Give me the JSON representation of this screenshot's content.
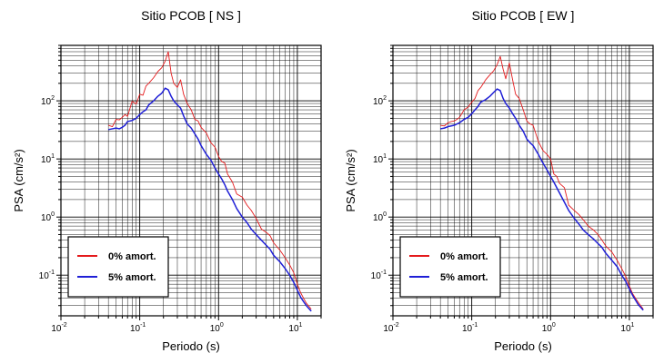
{
  "chart_data": [
    {
      "type": "line",
      "title": "Sitio PCOB [ NS ]",
      "xlabel": "Periodo (s)",
      "ylabel": "PSA (cm/s²)",
      "xscale": "log",
      "yscale": "log",
      "xlim": [
        0.01,
        20
      ],
      "ylim": [
        0.02,
        900
      ],
      "x_ticks": [
        "10-2",
        "10-1",
        "100",
        "101"
      ],
      "y_ticks": [
        "10-1",
        "100",
        "101",
        "102"
      ],
      "grid": true,
      "legend": {
        "placement": "bottom-left"
      },
      "series": [
        {
          "name": "0% amort.",
          "color": "#e41a1c",
          "x": [
            0.04,
            0.045,
            0.05,
            0.055,
            0.06,
            0.065,
            0.07,
            0.08,
            0.09,
            0.1,
            0.11,
            0.12,
            0.13,
            0.15,
            0.17,
            0.19,
            0.21,
            0.23,
            0.25,
            0.27,
            0.3,
            0.33,
            0.36,
            0.4,
            0.45,
            0.5,
            0.55,
            0.6,
            0.7,
            0.8,
            0.9,
            1.0,
            1.1,
            1.2,
            1.3,
            1.5,
            1.7,
            2.0,
            2.3,
            2.6,
            3.0,
            3.5,
            4.0,
            4.5,
            5.0,
            6.0,
            7.0,
            8.0,
            9.0,
            10.0,
            11.0,
            12.0,
            13.0,
            15.0
          ],
          "values": [
            38,
            36,
            48,
            47,
            52,
            58,
            54,
            98,
            88,
            130,
            125,
            180,
            200,
            250,
            320,
            370,
            480,
            700,
            300,
            200,
            170,
            230,
            130,
            90,
            70,
            48,
            45,
            35,
            28,
            19,
            16,
            11,
            9,
            8.5,
            5.5,
            4.0,
            2.5,
            2.2,
            1.6,
            1.3,
            0.95,
            0.62,
            0.55,
            0.48,
            0.36,
            0.27,
            0.2,
            0.15,
            0.11,
            0.07,
            0.05,
            0.04,
            0.033,
            0.026
          ]
        },
        {
          "name": "5% amort.",
          "color": "#1f1fd6",
          "x": [
            0.04,
            0.045,
            0.05,
            0.055,
            0.06,
            0.065,
            0.07,
            0.08,
            0.09,
            0.1,
            0.11,
            0.12,
            0.13,
            0.15,
            0.17,
            0.19,
            0.21,
            0.23,
            0.25,
            0.27,
            0.3,
            0.33,
            0.36,
            0.4,
            0.45,
            0.5,
            0.55,
            0.6,
            0.7,
            0.8,
            0.9,
            1.0,
            1.1,
            1.2,
            1.3,
            1.5,
            1.7,
            2.0,
            2.3,
            2.6,
            3.0,
            3.5,
            4.0,
            4.5,
            5.0,
            6.0,
            7.0,
            8.0,
            9.0,
            10.0,
            11.0,
            12.0,
            13.0,
            15.0
          ],
          "values": [
            32,
            33,
            34,
            33,
            35,
            38,
            44,
            46,
            50,
            58,
            65,
            70,
            85,
            100,
            120,
            135,
            165,
            155,
            120,
            100,
            85,
            75,
            55,
            40,
            34,
            27,
            22,
            17,
            12,
            9.5,
            7,
            5.5,
            4.5,
            3.6,
            2.8,
            2.0,
            1.4,
            1.0,
            0.8,
            0.62,
            0.5,
            0.4,
            0.33,
            0.28,
            0.22,
            0.17,
            0.13,
            0.1,
            0.075,
            0.055,
            0.042,
            0.035,
            0.03,
            0.024
          ]
        }
      ]
    },
    {
      "type": "line",
      "title": "Sitio PCOB [ EW ]",
      "xlabel": "Periodo (s)",
      "ylabel": "PSA (cm/s²)",
      "xscale": "log",
      "yscale": "log",
      "xlim": [
        0.01,
        20
      ],
      "ylim": [
        0.02,
        900
      ],
      "x_ticks": [
        "10-2",
        "10-1",
        "100",
        "101"
      ],
      "y_ticks": [
        "10-1",
        "100",
        "101",
        "102"
      ],
      "grid": true,
      "legend": {
        "placement": "bottom-left"
      },
      "series": [
        {
          "name": "0% amort.",
          "color": "#e41a1c",
          "x": [
            0.04,
            0.045,
            0.05,
            0.055,
            0.06,
            0.065,
            0.07,
            0.08,
            0.09,
            0.1,
            0.11,
            0.12,
            0.13,
            0.15,
            0.17,
            0.19,
            0.21,
            0.23,
            0.25,
            0.27,
            0.3,
            0.33,
            0.36,
            0.4,
            0.45,
            0.5,
            0.55,
            0.6,
            0.7,
            0.8,
            0.9,
            1.0,
            1.1,
            1.2,
            1.3,
            1.5,
            1.7,
            2.0,
            2.3,
            2.6,
            3.0,
            3.5,
            4.0,
            4.5,
            5.0,
            6.0,
            7.0,
            8.0,
            9.0,
            10.0,
            11.0,
            12.0,
            13.0,
            15.0
          ],
          "values": [
            38,
            37,
            42,
            44,
            45,
            48,
            52,
            70,
            78,
            95,
            110,
            150,
            170,
            230,
            280,
            330,
            420,
            580,
            350,
            240,
            450,
            230,
            130,
            110,
            70,
            45,
            40,
            38,
            20,
            14,
            12,
            10,
            5.5,
            5.0,
            3.8,
            3.2,
            1.6,
            1.3,
            1.1,
            0.9,
            0.7,
            0.6,
            0.5,
            0.4,
            0.32,
            0.25,
            0.18,
            0.13,
            0.095,
            0.065,
            0.048,
            0.04,
            0.034,
            0.026
          ]
        },
        {
          "name": "5% amort.",
          "color": "#1f1fd6",
          "x": [
            0.04,
            0.045,
            0.05,
            0.055,
            0.06,
            0.065,
            0.07,
            0.08,
            0.09,
            0.1,
            0.11,
            0.12,
            0.13,
            0.15,
            0.17,
            0.19,
            0.21,
            0.23,
            0.25,
            0.27,
            0.3,
            0.33,
            0.36,
            0.4,
            0.45,
            0.5,
            0.55,
            0.6,
            0.7,
            0.8,
            0.9,
            1.0,
            1.1,
            1.2,
            1.3,
            1.5,
            1.7,
            2.0,
            2.3,
            2.6,
            3.0,
            3.5,
            4.0,
            4.5,
            5.0,
            6.0,
            7.0,
            8.0,
            9.0,
            10.0,
            11.0,
            12.0,
            13.0,
            15.0
          ],
          "values": [
            33,
            34,
            36,
            37,
            38,
            40,
            42,
            48,
            52,
            60,
            70,
            80,
            95,
            105,
            120,
            140,
            160,
            150,
            110,
            90,
            75,
            60,
            50,
            38,
            30,
            22,
            19,
            17,
            12,
            8.5,
            6.5,
            5.0,
            4.0,
            3.2,
            2.6,
            1.8,
            1.3,
            0.95,
            0.75,
            0.6,
            0.5,
            0.42,
            0.35,
            0.3,
            0.24,
            0.18,
            0.14,
            0.1,
            0.078,
            0.058,
            0.045,
            0.037,
            0.031,
            0.025
          ]
        }
      ]
    }
  ]
}
